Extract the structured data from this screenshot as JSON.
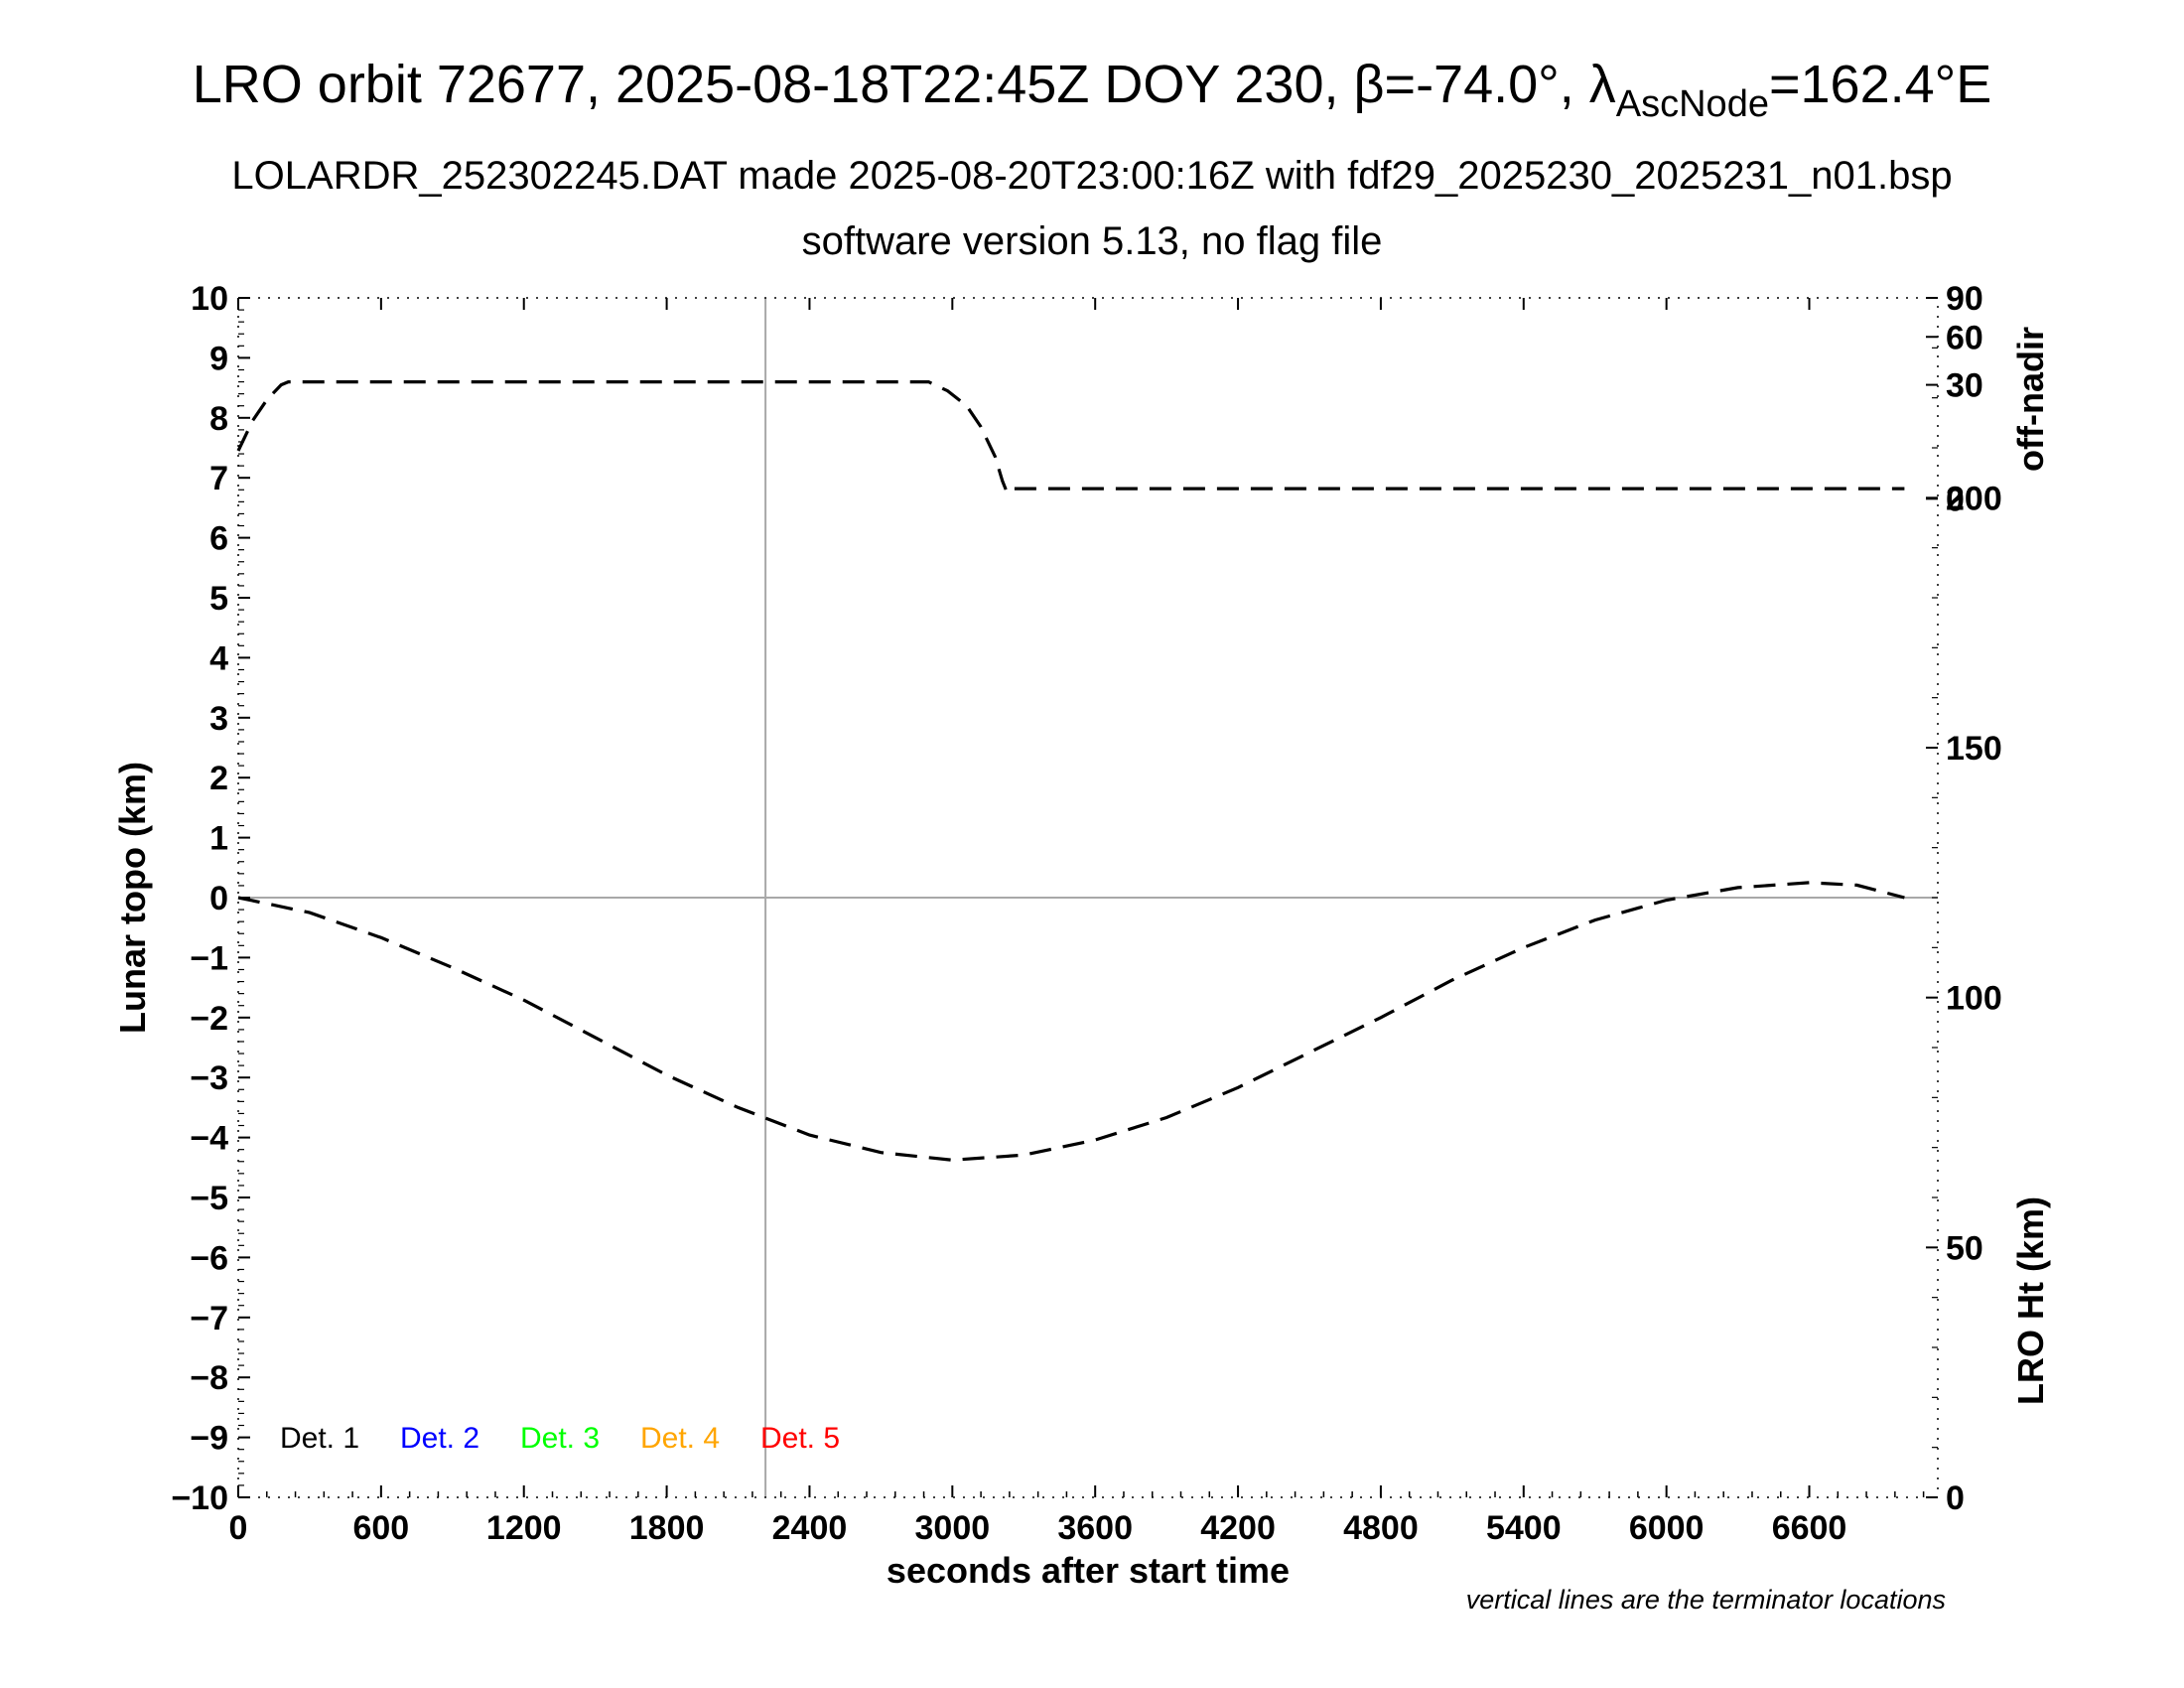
{
  "chart_data": {
    "type": "line",
    "title": {
      "main": "LRO orbit 72677, 2025-08-18T22:45Z DOY 230, β=-74.0°, λ",
      "sub_script": "AscNode",
      "tail": "=162.4°E"
    },
    "subtitle_1": "LOLARDR_252302245.DAT made 2025-08-20T23:00:16Z with fdf29_2025230_2025231_n01.bsp",
    "subtitle_2": "software version 5.13, no flag file",
    "xlabel": "seconds after start time",
    "ylabel": "Lunar topo (km)",
    "right_label_top": "off-nadir",
    "right_label_bottom": "LRO Ht (km)",
    "note": "vertical lines are the terminator locations",
    "xlim": [
      0,
      7140
    ],
    "ylim": [
      -10,
      10
    ],
    "x_ticks": [
      0,
      600,
      1200,
      1800,
      2400,
      3000,
      3600,
      4200,
      4800,
      5400,
      6000,
      6600
    ],
    "y_ticks": [
      -10,
      -9,
      -8,
      -7,
      -6,
      -5,
      -4,
      -3,
      -2,
      -1,
      0,
      1,
      2,
      3,
      4,
      5,
      6,
      7,
      8,
      9,
      10
    ],
    "y_tick_labels": [
      "−10",
      "−9",
      "−8",
      "−7",
      "−6",
      "−5",
      "−4",
      "−3",
      "−2",
      "−1",
      "0",
      "1",
      "2",
      "3",
      "4",
      "5",
      "6",
      "7",
      "8",
      "9",
      "10"
    ],
    "off_nadir_axis": {
      "ticks": [
        {
          "label": "90",
          "topo": 10.0
        },
        {
          "label": "60",
          "topo": 9.35
        },
        {
          "label": "30",
          "topo": 8.55
        },
        {
          "label": "0",
          "topo": 6.65
        }
      ]
    },
    "height_axis": {
      "ylim": [
        0,
        240
      ],
      "ticks": [
        0,
        50,
        100,
        150,
        200
      ]
    },
    "terminator_lines": [
      2215
    ],
    "zero_line": 0,
    "legend": [
      {
        "label": "Det. 1",
        "color": "#000000"
      },
      {
        "label": "Det. 2",
        "color": "#0000ff"
      },
      {
        "label": "Det. 3",
        "color": "#00ff00"
      },
      {
        "label": "Det. 4",
        "color": "#ffa500"
      },
      {
        "label": "Det. 5",
        "color": "#ff0000"
      }
    ],
    "series": [
      {
        "axis": "off-nadir (plotted on topo scale)",
        "style": "dashed",
        "color": "#000000",
        "x": [
          0,
          60,
          120,
          180,
          210,
          600,
          1200,
          1800,
          2400,
          2900,
          2980,
          3060,
          3120,
          3180,
          3210,
          3230,
          3260,
          3600,
          4200,
          4800,
          5400,
          6000,
          6600,
          7000
        ],
        "y": [
          7.45,
          7.95,
          8.3,
          8.55,
          8.6,
          8.6,
          8.6,
          8.6,
          8.6,
          8.6,
          8.45,
          8.2,
          7.85,
          7.35,
          6.95,
          6.75,
          6.82,
          6.82,
          6.82,
          6.82,
          6.82,
          6.82,
          6.82,
          6.82
        ]
      },
      {
        "axis": "LRO Ht (km)",
        "style": "dashed",
        "color": "#000000",
        "x": [
          0,
          300,
          600,
          900,
          1200,
          1500,
          1800,
          2100,
          2400,
          2700,
          3000,
          3300,
          3600,
          3900,
          4200,
          4500,
          4800,
          5100,
          5400,
          5700,
          6000,
          6300,
          6600,
          6800,
          7000
        ],
        "y": [
          120,
          117,
          112,
          106,
          99.5,
          92,
          84.5,
          78,
          72.5,
          69,
          67.5,
          68.5,
          71.5,
          76,
          82,
          89,
          96,
          103.5,
          110,
          115.5,
          119.5,
          122,
          123,
          122.5,
          120
        ]
      }
    ]
  }
}
